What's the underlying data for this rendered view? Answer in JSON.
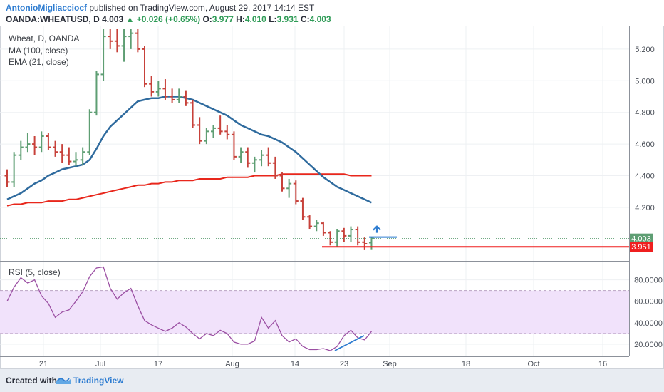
{
  "header": {
    "author": "AntonioMigliacciocf",
    "publish_text": "published on TradingView.com, August 29, 2017 14:14 EST",
    "symbol": "OANDA:WHEATUSD, D",
    "last": "4.003",
    "change": "▲ +0.026 (+0.65%)",
    "o_label": "O:",
    "o_value": "3.977",
    "h_label": "H:",
    "h_value": "4.010",
    "l_label": "L:",
    "l_value": "3.931",
    "c_label": "C:",
    "c_value": "4.003"
  },
  "legend": {
    "line1": "Wheat, D, OANDA",
    "line2": "MA (100, close)",
    "line3": "EMA (21, close)",
    "rsi": "RSI (5, close)"
  },
  "footer": {
    "created_with": "Created with",
    "brand": "TradingView"
  },
  "colors": {
    "up_bar": "#5e9e73",
    "down_bar": "#c7413a",
    "ema": "#2f6b9e",
    "ma": "#e8271c",
    "rsi_line": "#9b4fa3",
    "rsi_band": "#f1e2fb",
    "support": "#ef1f1f",
    "resistance": "#2f7dd1",
    "price_label": "#5e9e73",
    "support_label": "#ef1f1f"
  },
  "chart_data": [
    {
      "type": "ohlc",
      "title": "Wheat, D, OANDA",
      "ylim": [
        3.88,
        5.33
      ],
      "y_ticks": [
        "5.200",
        "5.000",
        "4.800",
        "4.600",
        "4.400",
        "4.200"
      ],
      "x_ticks": [
        "21",
        "Jul",
        "17",
        "Aug",
        "14",
        "23",
        "Sep",
        "18",
        "Oct",
        "16"
      ],
      "bars": [
        [
          4.4,
          4.44,
          4.33,
          4.36
        ],
        [
          4.36,
          4.55,
          4.33,
          4.53
        ],
        [
          4.53,
          4.62,
          4.5,
          4.58
        ],
        [
          4.58,
          4.67,
          4.55,
          4.6
        ],
        [
          4.6,
          4.65,
          4.53,
          4.58
        ],
        [
          4.58,
          4.68,
          4.55,
          4.65
        ],
        [
          4.65,
          4.67,
          4.56,
          4.58
        ],
        [
          4.58,
          4.62,
          4.52,
          4.55
        ],
        [
          4.55,
          4.6,
          4.48,
          4.53
        ],
        [
          4.53,
          4.58,
          4.47,
          4.49
        ],
        [
          4.49,
          4.55,
          4.46,
          4.5
        ],
        [
          4.5,
          4.58,
          4.47,
          4.55
        ],
        [
          4.55,
          4.82,
          4.53,
          4.8
        ],
        [
          4.8,
          5.06,
          4.78,
          5.04
        ],
        [
          5.04,
          5.33,
          5.0,
          5.28
        ],
        [
          5.28,
          5.33,
          5.2,
          5.25
        ],
        [
          5.25,
          5.33,
          5.18,
          5.22
        ],
        [
          5.22,
          5.33,
          5.12,
          5.28
        ],
        [
          5.28,
          5.33,
          5.2,
          5.3
        ],
        [
          5.3,
          5.33,
          5.18,
          5.2
        ],
        [
          5.2,
          5.22,
          4.96,
          4.98
        ],
        [
          4.98,
          5.03,
          4.9,
          4.93
        ],
        [
          4.93,
          5.0,
          4.9,
          4.95
        ],
        [
          4.95,
          5.01,
          4.88,
          4.9
        ],
        [
          4.9,
          4.95,
          4.86,
          4.88
        ],
        [
          4.88,
          4.95,
          4.86,
          4.9
        ],
        [
          4.9,
          4.94,
          4.84,
          4.86
        ],
        [
          4.86,
          4.88,
          4.7,
          4.72
        ],
        [
          4.72,
          4.77,
          4.6,
          4.62
        ],
        [
          4.62,
          4.7,
          4.6,
          4.68
        ],
        [
          4.68,
          4.72,
          4.64,
          4.7
        ],
        [
          4.7,
          4.78,
          4.66,
          4.68
        ],
        [
          4.68,
          4.72,
          4.63,
          4.66
        ],
        [
          4.66,
          4.68,
          4.5,
          4.52
        ],
        [
          4.52,
          4.58,
          4.48,
          4.55
        ],
        [
          4.55,
          4.58,
          4.45,
          4.48
        ],
        [
          4.48,
          4.52,
          4.42,
          4.5
        ],
        [
          4.5,
          4.56,
          4.46,
          4.53
        ],
        [
          4.53,
          4.58,
          4.46,
          4.48
        ],
        [
          4.48,
          4.52,
          4.38,
          4.4
        ],
        [
          4.4,
          4.42,
          4.3,
          4.32
        ],
        [
          4.32,
          4.38,
          4.26,
          4.35
        ],
        [
          4.35,
          4.37,
          4.22,
          4.24
        ],
        [
          4.24,
          4.26,
          4.12,
          4.14
        ],
        [
          4.14,
          4.15,
          4.06,
          4.08
        ],
        [
          4.08,
          4.12,
          4.05,
          4.1
        ],
        [
          4.1,
          4.11,
          4.02,
          4.04
        ],
        [
          4.04,
          4.05,
          3.96,
          3.98
        ],
        [
          3.98,
          4.06,
          3.95,
          4.05
        ],
        [
          4.05,
          4.07,
          3.98,
          4.02
        ],
        [
          4.02,
          4.08,
          3.98,
          4.06
        ],
        [
          4.06,
          4.08,
          3.96,
          3.98
        ],
        [
          3.98,
          4.01,
          3.93,
          3.97
        ],
        [
          3.977,
          4.01,
          3.931,
          4.003
        ]
      ],
      "ma_100": [
        4.21,
        4.22,
        4.22,
        4.23,
        4.23,
        4.23,
        4.24,
        4.24,
        4.24,
        4.25,
        4.25,
        4.26,
        4.27,
        4.28,
        4.29,
        4.3,
        4.31,
        4.32,
        4.33,
        4.34,
        4.34,
        4.35,
        4.35,
        4.36,
        4.36,
        4.37,
        4.37,
        4.37,
        4.38,
        4.38,
        4.38,
        4.38,
        4.39,
        4.39,
        4.39,
        4.39,
        4.4,
        4.4,
        4.4,
        4.4,
        4.41,
        4.41,
        4.41,
        4.41,
        4.41,
        4.41,
        4.41,
        4.41,
        4.41,
        4.41,
        4.4,
        4.4,
        4.4,
        4.4
      ],
      "ema_21": [
        4.25,
        4.27,
        4.29,
        4.32,
        4.35,
        4.37,
        4.4,
        4.42,
        4.44,
        4.45,
        4.46,
        4.47,
        4.5,
        4.57,
        4.65,
        4.71,
        4.75,
        4.79,
        4.83,
        4.87,
        4.88,
        4.89,
        4.89,
        4.9,
        4.9,
        4.9,
        4.89,
        4.88,
        4.86,
        4.84,
        4.82,
        4.8,
        4.78,
        4.75,
        4.72,
        4.7,
        4.68,
        4.66,
        4.65,
        4.63,
        4.61,
        4.58,
        4.55,
        4.51,
        4.47,
        4.43,
        4.39,
        4.36,
        4.33,
        4.31,
        4.29,
        4.27,
        4.25,
        4.23
      ],
      "current_price": {
        "value": 4.003,
        "label": "4.003"
      },
      "support": {
        "value": 3.951,
        "label": "3.951"
      },
      "resistance": {
        "value": 4.012
      }
    },
    {
      "type": "line",
      "title": "RSI (5, close)",
      "ylim": [
        10,
        95
      ],
      "y_ticks": [
        "80.0000",
        "60.0000",
        "40.0000",
        "20.0000"
      ],
      "band": [
        30,
        70
      ],
      "values": [
        60,
        73,
        82,
        77,
        80,
        65,
        58,
        45,
        50,
        52,
        60,
        69,
        83,
        91,
        92,
        72,
        62,
        68,
        72,
        56,
        42,
        38,
        35,
        32,
        35,
        40,
        36,
        30,
        25,
        30,
        28,
        33,
        30,
        22,
        20,
        20,
        23,
        45,
        35,
        42,
        28,
        22,
        25,
        18,
        15,
        15,
        16,
        14,
        18,
        28,
        33,
        26,
        24,
        32
      ]
    }
  ]
}
